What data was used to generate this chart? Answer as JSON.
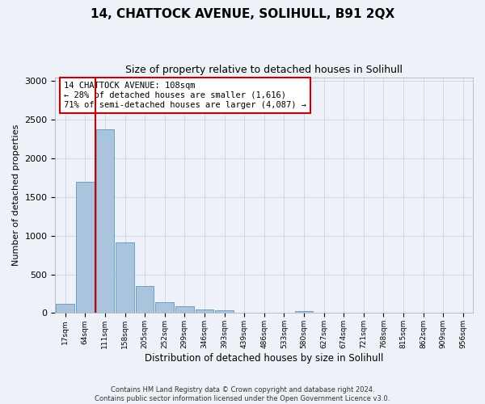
{
  "title1": "14, CHATTOCK AVENUE, SOLIHULL, B91 2QX",
  "title2": "Size of property relative to detached houses in Solihull",
  "xlabel": "Distribution of detached houses by size in Solihull",
  "ylabel": "Number of detached properties",
  "bar_labels": [
    "17sqm",
    "64sqm",
    "111sqm",
    "158sqm",
    "205sqm",
    "252sqm",
    "299sqm",
    "346sqm",
    "393sqm",
    "439sqm",
    "486sqm",
    "533sqm",
    "580sqm",
    "627sqm",
    "674sqm",
    "721sqm",
    "768sqm",
    "815sqm",
    "862sqm",
    "909sqm",
    "956sqm"
  ],
  "bar_values": [
    120,
    1700,
    2380,
    910,
    345,
    140,
    85,
    50,
    40,
    0,
    0,
    0,
    30,
    0,
    0,
    0,
    0,
    0,
    0,
    0,
    0
  ],
  "bar_color": "#aac4dd",
  "bar_edge_color": "#5a9ac0",
  "grid_color": "#d0d8e8",
  "background_color": "#eef2f8",
  "vline_color": "#cc0000",
  "annotation_text": "14 CHATTOCK AVENUE: 108sqm\n← 28% of detached houses are smaller (1,616)\n71% of semi-detached houses are larger (4,087) →",
  "annotation_box_color": "#ffffff",
  "annotation_box_edge": "#cc0000",
  "ylim": [
    0,
    3050
  ],
  "yticks": [
    0,
    500,
    1000,
    1500,
    2000,
    2500,
    3000
  ],
  "footer": "Contains HM Land Registry data © Crown copyright and database right 2024.\nContains public sector information licensed under the Open Government Licence v3.0."
}
